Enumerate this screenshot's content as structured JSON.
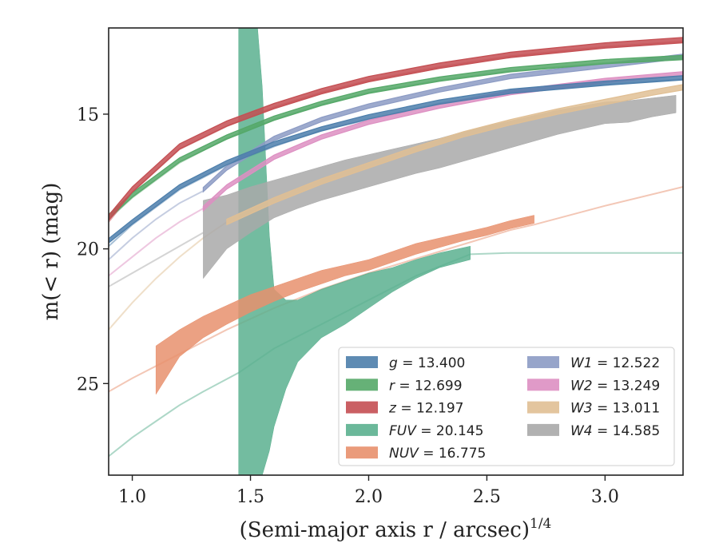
{
  "chart_data": {
    "type": "line",
    "xlabel": "(Semi-major axis r / arcsec)",
    "xlabel_sup": "1/4",
    "ylabel": "m(< r) (mag)",
    "xlim": [
      0.9,
      3.33
    ],
    "ylim": [
      28.4,
      11.8
    ],
    "y_inverted": true,
    "x_ticks": [
      1.0,
      1.5,
      2.0,
      2.5,
      3.0
    ],
    "x_tick_labels": [
      "1.0",
      "1.5",
      "2.0",
      "2.5",
      "3.0"
    ],
    "y_ticks": [
      15,
      20,
      25
    ],
    "y_tick_labels": [
      "15",
      "20",
      "25"
    ],
    "grid": false,
    "legend_position": "lower-right",
    "legend_columns": 2,
    "series": [
      {
        "name": "g = 13.400",
        "var": "g",
        "value": "13.400",
        "color": "#4c7eab",
        "faint": {
          "x": [
            0.9,
            1.0,
            1.2,
            1.4,
            1.6,
            1.8,
            2.0,
            2.3,
            2.6,
            3.0,
            3.33
          ],
          "y": [
            19.9,
            19.1,
            17.8,
            16.9,
            16.2,
            15.6,
            15.2,
            14.6,
            14.2,
            13.9,
            13.7
          ]
        },
        "band": {
          "x": [
            0.9,
            1.0,
            1.2,
            1.4,
            1.6,
            1.8,
            2.0,
            2.3,
            2.6,
            3.0,
            3.33
          ],
          "y": [
            19.7,
            19.0,
            17.7,
            16.8,
            16.1,
            15.55,
            15.1,
            14.55,
            14.15,
            13.85,
            13.65
          ],
          "halfwidth": 0.08
        }
      },
      {
        "name": "r = 12.699",
        "var": "r",
        "value": "12.699",
        "color": "#55a868",
        "faint": {
          "x": [
            0.9,
            1.0,
            1.2,
            1.4,
            1.6,
            1.8,
            2.0,
            2.3,
            2.6,
            3.0,
            3.33
          ],
          "y": [
            18.9,
            18.1,
            16.8,
            15.9,
            15.2,
            14.65,
            14.2,
            13.75,
            13.4,
            13.1,
            12.95
          ]
        },
        "band": {
          "x": [
            0.9,
            1.0,
            1.2,
            1.4,
            1.6,
            1.8,
            2.0,
            2.3,
            2.6,
            3.0,
            3.33
          ],
          "y": [
            18.8,
            18.0,
            16.7,
            15.85,
            15.15,
            14.6,
            14.15,
            13.7,
            13.35,
            13.05,
            12.9
          ],
          "halfwidth": 0.08
        }
      },
      {
        "name": "z = 12.197",
        "var": "z",
        "value": "12.197",
        "color": "#c44e52",
        "faint": {
          "x": [
            0.9,
            1.0,
            1.2,
            1.4,
            1.6,
            1.8,
            2.0,
            2.3,
            2.6,
            3.0,
            3.33
          ],
          "y": [
            19.0,
            17.9,
            16.3,
            15.45,
            14.75,
            14.2,
            13.75,
            13.25,
            12.85,
            12.5,
            12.3
          ]
        },
        "band": {
          "x": [
            0.9,
            1.0,
            1.2,
            1.4,
            1.6,
            1.8,
            2.0,
            2.3,
            2.6,
            3.0,
            3.33
          ],
          "y": [
            18.85,
            17.8,
            16.2,
            15.35,
            14.7,
            14.15,
            13.7,
            13.2,
            12.8,
            12.45,
            12.25
          ],
          "halfwidth": 0.1
        }
      },
      {
        "name": "FUV = 20.145",
        "var": "FUV",
        "value": "20.145",
        "color": "#5bb08f",
        "faint": {
          "x": [
            0.9,
            1.0,
            1.1,
            1.2,
            1.3,
            1.45,
            1.6,
            1.8,
            2.0,
            2.2,
            2.43,
            2.6,
            3.0,
            3.33
          ],
          "y": [
            27.7,
            27.0,
            26.4,
            25.8,
            25.3,
            24.6,
            23.7,
            22.8,
            21.9,
            21.0,
            20.2,
            20.15,
            20.15,
            20.15
          ]
        },
        "band_x": [
          1.45,
          1.48,
          1.5,
          1.53,
          1.55,
          1.58,
          1.6,
          1.65,
          1.7,
          1.8,
          1.9,
          2.0,
          2.1,
          2.2,
          2.3,
          2.43
        ],
        "band_top": [
          11.8,
          11.8,
          11.8,
          11.8,
          14.0,
          19.5,
          21.5,
          21.9,
          21.9,
          21.5,
          21.2,
          20.9,
          20.7,
          20.4,
          20.15,
          19.9
        ],
        "band_bot": [
          28.4,
          28.4,
          28.4,
          28.4,
          28.4,
          27.5,
          26.6,
          25.2,
          24.2,
          23.3,
          22.8,
          22.2,
          21.6,
          21.1,
          20.7,
          20.4
        ]
      },
      {
        "name": "NUV = 16.775",
        "var": "NUV",
        "value": "16.775",
        "color": "#e8906d",
        "faint": {
          "x": [
            0.9,
            1.0,
            1.2,
            1.4,
            1.6,
            1.8,
            2.0,
            2.3,
            2.6,
            2.7,
            3.0,
            3.33
          ],
          "y": [
            25.3,
            24.8,
            23.9,
            23.0,
            22.2,
            21.5,
            20.9,
            20.1,
            19.3,
            19.1,
            18.4,
            17.7
          ]
        },
        "band_x": [
          1.1,
          1.15,
          1.2,
          1.3,
          1.4,
          1.5,
          1.6,
          1.7,
          1.8,
          1.9,
          2.0,
          2.1,
          2.2,
          2.3,
          2.4,
          2.5,
          2.6,
          2.7
        ],
        "band_top": [
          23.6,
          23.3,
          23.0,
          22.5,
          22.1,
          21.7,
          21.4,
          21.1,
          20.8,
          20.6,
          20.4,
          20.1,
          19.8,
          19.6,
          19.4,
          19.2,
          18.95,
          18.75
        ],
        "band_bot": [
          25.4,
          24.7,
          24.0,
          23.3,
          22.8,
          22.35,
          21.95,
          21.6,
          21.3,
          21.0,
          20.8,
          20.5,
          20.2,
          19.95,
          19.7,
          19.5,
          19.25,
          19.05
        ]
      },
      {
        "name": "W1 = 12.522",
        "var": "W1",
        "value": "12.522",
        "color": "#8c9bc4",
        "faint": {
          "x": [
            0.9,
            1.0,
            1.1,
            1.2,
            1.3
          ],
          "y": [
            20.4,
            19.6,
            18.9,
            18.3,
            17.85
          ]
        },
        "band": {
          "x": [
            1.3,
            1.4,
            1.6,
            1.8,
            2.0,
            2.3,
            2.6,
            3.0,
            3.33
          ],
          "y": [
            17.8,
            17.0,
            15.9,
            15.2,
            14.7,
            14.1,
            13.6,
            13.2,
            12.85
          ],
          "halfwidth": 0.08
        }
      },
      {
        "name": "W2 = 13.249",
        "var": "W2",
        "value": "13.249",
        "color": "#dd8fc2",
        "faint": {
          "x": [
            0.9,
            1.0,
            1.1,
            1.2,
            1.3
          ],
          "y": [
            21.0,
            20.3,
            19.6,
            19.0,
            18.5
          ]
        },
        "band": {
          "x": [
            1.3,
            1.4,
            1.6,
            1.8,
            2.0,
            2.3,
            2.6,
            3.0,
            3.33
          ],
          "y": [
            18.5,
            17.7,
            16.6,
            15.85,
            15.3,
            14.7,
            14.2,
            13.75,
            13.5
          ],
          "halfwidth": 0.08
        }
      },
      {
        "name": "W3 = 13.011",
        "var": "W3",
        "value": "13.011",
        "color": "#e0bf94",
        "faint": {
          "x": [
            0.9,
            1.0,
            1.1,
            1.2,
            1.3,
            1.4
          ],
          "y": [
            23.0,
            22.0,
            21.1,
            20.3,
            19.6,
            19.0
          ]
        },
        "band": {
          "x": [
            1.4,
            1.6,
            1.8,
            2.0,
            2.2,
            2.4,
            2.6,
            2.8,
            3.0,
            3.2,
            3.33
          ],
          "y": [
            19.0,
            18.2,
            17.5,
            16.9,
            16.3,
            15.75,
            15.3,
            14.9,
            14.55,
            14.2,
            14.0
          ],
          "halfwidth": 0.1
        }
      },
      {
        "name": "W4 = 14.585",
        "var": "W4",
        "value": "14.585",
        "color": "#a9a9a9",
        "faint": {
          "x": [
            0.9,
            1.0,
            1.1,
            1.2,
            1.3
          ],
          "y": [
            21.4,
            20.9,
            20.4,
            19.9,
            19.4
          ]
        },
        "band_x": [
          1.3,
          1.4,
          1.5,
          1.6,
          1.7,
          1.8,
          1.9,
          2.0,
          2.1,
          2.2,
          2.3,
          2.4,
          2.5,
          2.6,
          2.7,
          2.8,
          2.9,
          3.0,
          3.1,
          3.2,
          3.3
        ],
        "band_top": [
          18.2,
          18.0,
          17.7,
          17.45,
          17.2,
          16.95,
          16.7,
          16.5,
          16.3,
          16.1,
          15.9,
          15.65,
          15.45,
          15.25,
          15.05,
          14.85,
          14.7,
          14.55,
          14.5,
          14.4,
          14.3
        ],
        "band_bot": [
          21.1,
          20.0,
          19.4,
          18.85,
          18.5,
          18.2,
          17.95,
          17.7,
          17.45,
          17.2,
          17.0,
          16.75,
          16.5,
          16.25,
          16.0,
          15.75,
          15.55,
          15.35,
          15.3,
          15.1,
          14.95
        ]
      }
    ]
  }
}
